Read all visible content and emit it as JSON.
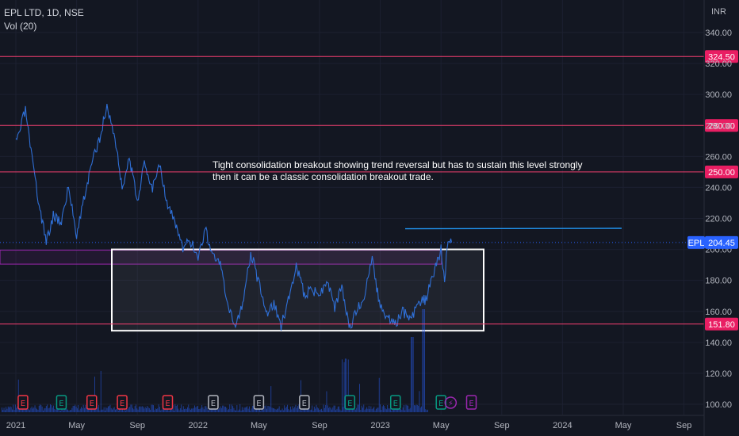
{
  "header": {
    "symbol_line": "EPL LTD, 1D, NSE",
    "volume_line": "Vol (20)"
  },
  "chart_data": {
    "type": "line",
    "title": "EPL LTD, 1D, NSE",
    "currency": "INR",
    "y_axis": {
      "unit": "INR",
      "min": 95,
      "max": 350,
      "ticks": [
        100,
        120,
        140,
        160,
        180,
        200,
        220,
        240,
        260,
        280,
        300,
        320,
        340
      ]
    },
    "x_axis": {
      "ticks": [
        "2021",
        "May",
        "Sep",
        "2022",
        "May",
        "Sep",
        "2023",
        "May",
        "Sep",
        "2024",
        "May",
        "Sep"
      ],
      "tick_dates": [
        "2021-01",
        "2021-05",
        "2021-09",
        "2022-01",
        "2022-05",
        "2022-09",
        "2023-01",
        "2023-05",
        "2023-09",
        "2024-01",
        "2024-05",
        "2024-09"
      ]
    },
    "series": [
      {
        "name": "EPL",
        "color": "#2f6fd6",
        "points": [
          [
            "2021-01",
            268
          ],
          [
            "2021-01-20",
            290
          ],
          [
            "2021-02",
            262
          ],
          [
            "2021-02-15",
            232
          ],
          [
            "2021-03",
            205
          ],
          [
            "2021-03-15",
            222
          ],
          [
            "2021-04",
            218
          ],
          [
            "2021-04-15",
            240
          ],
          [
            "2021-05",
            210
          ],
          [
            "2021-05-15",
            232
          ],
          [
            "2021-06",
            255
          ],
          [
            "2021-06-15",
            270
          ],
          [
            "2021-07",
            292
          ],
          [
            "2021-07-15",
            275
          ],
          [
            "2021-08",
            240
          ],
          [
            "2021-08-15",
            258
          ],
          [
            "2021-09",
            232
          ],
          [
            "2021-09-15",
            255
          ],
          [
            "2021-10",
            240
          ],
          [
            "2021-10-15",
            256
          ],
          [
            "2021-11",
            228
          ],
          [
            "2021-11-15",
            218
          ],
          [
            "2021-12",
            200
          ],
          [
            "2021-12-15",
            206
          ],
          [
            "2022-01",
            195
          ],
          [
            "2022-01-15",
            213
          ],
          [
            "2022-02",
            196
          ],
          [
            "2022-02-15",
            190
          ],
          [
            "2022-03",
            160
          ],
          [
            "2022-03-15",
            151
          ],
          [
            "2022-04",
            168
          ],
          [
            "2022-04-15",
            198
          ],
          [
            "2022-05",
            178
          ],
          [
            "2022-05-15",
            158
          ],
          [
            "2022-06",
            165
          ],
          [
            "2022-06-15",
            150
          ],
          [
            "2022-07",
            170
          ],
          [
            "2022-07-15",
            190
          ],
          [
            "2022-08",
            170
          ],
          [
            "2022-08-15",
            175
          ],
          [
            "2022-09",
            170
          ],
          [
            "2022-09-15",
            181
          ],
          [
            "2022-10",
            162
          ],
          [
            "2022-10-15",
            175
          ],
          [
            "2022-11",
            150
          ],
          [
            "2022-11-15",
            160
          ],
          [
            "2022-12",
            172
          ],
          [
            "2022-12-15",
            193
          ],
          [
            "2023-01",
            162
          ],
          [
            "2023-01-15",
            155
          ],
          [
            "2023-02",
            152
          ],
          [
            "2023-02-15",
            160
          ],
          [
            "2023-03",
            154
          ],
          [
            "2023-03-15",
            165
          ],
          [
            "2023-04",
            168
          ],
          [
            "2023-04-15",
            182
          ],
          [
            "2023-05",
            200
          ],
          [
            "2023-05-08",
            180
          ],
          [
            "2023-05-15",
            208
          ],
          [
            "2023-05-22",
            204.45
          ]
        ]
      }
    ],
    "last_price": {
      "label": "EPL",
      "value": "204.45",
      "y": 204.45
    },
    "horizontal_levels": [
      {
        "value": 324.5,
        "label": "324.50"
      },
      {
        "value": 280,
        "label": "280.00"
      },
      {
        "value": 250,
        "label": "250.00"
      },
      {
        "value": 151.8,
        "label": "151.80"
      }
    ],
    "consolidation_box": {
      "x_start": "2022-01",
      "x_end": "2023-07-15",
      "y_low": 147.5,
      "y_high": 200
    },
    "resistance_zone": {
      "x_start": "2021-01",
      "x_end": "2023-06",
      "y_low": 190.5,
      "y_high": 199.5
    },
    "trend_line": {
      "x_start": "2023-05",
      "x_end": "2024-07",
      "y": 213
    },
    "annotation": "Tight consolidation breakout showing trend reversal but has to sustain this level strongly\n then it can be a classic consolidation breakout trade.",
    "events": [
      {
        "date": "2021-01-15",
        "label": "E",
        "kind": "earnings-negative"
      },
      {
        "date": "2021-04",
        "label": "E",
        "kind": "earnings-positive"
      },
      {
        "date": "2021-06",
        "label": "E",
        "kind": "earnings-negative"
      },
      {
        "date": "2021-08",
        "label": "E",
        "kind": "earnings-negative"
      },
      {
        "date": "2021-11",
        "label": "E",
        "kind": "earnings-negative"
      },
      {
        "date": "2022-02",
        "label": "E",
        "kind": "earnings-neutral"
      },
      {
        "date": "2022-05",
        "label": "E",
        "kind": "earnings-neutral"
      },
      {
        "date": "2022-08",
        "label": "E",
        "kind": "earnings-neutral"
      },
      {
        "date": "2022-11",
        "label": "E",
        "kind": "earnings-positive"
      },
      {
        "date": "2023-02",
        "label": "E",
        "kind": "earnings-positive"
      },
      {
        "date": "2023-05",
        "label": "E",
        "kind": "earnings-positive"
      },
      {
        "date": "2023-05-20",
        "label": "⚡",
        "kind": "split"
      },
      {
        "date": "2023-07",
        "label": "E",
        "kind": "earnings-upcoming"
      }
    ]
  }
}
